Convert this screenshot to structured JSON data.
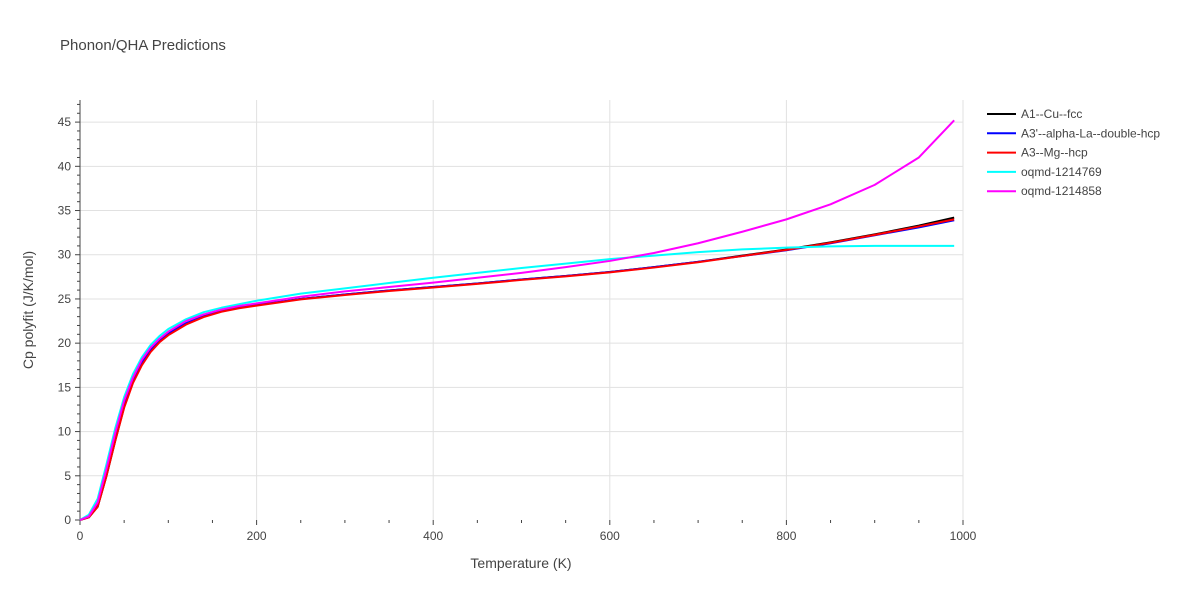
{
  "chart_data": {
    "type": "line",
    "title": "Phonon/QHA Predictions",
    "xlabel": "Temperature (K)",
    "ylabel": "Cp polyfit (J/K/mol)",
    "xlim": [
      0,
      1000
    ],
    "ylim": [
      0,
      47.5
    ],
    "xticks": [
      0,
      200,
      400,
      600,
      800,
      1000
    ],
    "yticks": [
      0,
      5,
      10,
      15,
      20,
      25,
      30,
      35,
      40,
      45
    ],
    "grid": true,
    "legend_position": "top-right",
    "x": [
      0,
      10,
      20,
      30,
      40,
      50,
      60,
      70,
      80,
      90,
      100,
      120,
      140,
      160,
      180,
      200,
      250,
      300,
      350,
      400,
      450,
      500,
      550,
      600,
      650,
      700,
      750,
      800,
      850,
      900,
      950,
      990
    ],
    "series": [
      {
        "name": "A1--Cu--fcc",
        "color": "#000000",
        "values": [
          0,
          0.3,
          1.5,
          5.0,
          9.0,
          12.8,
          15.6,
          17.6,
          19.1,
          20.2,
          21.0,
          22.2,
          23.0,
          23.6,
          24.0,
          24.3,
          25.0,
          25.5,
          25.95,
          26.35,
          26.75,
          27.2,
          27.6,
          28.05,
          28.6,
          29.2,
          29.9,
          30.6,
          31.4,
          32.3,
          33.3,
          34.2
        ]
      },
      {
        "name": "A3'--alpha-La--double-hcp",
        "color": "#0000ff",
        "values": [
          0,
          0.4,
          1.8,
          5.4,
          9.4,
          13.1,
          15.8,
          17.8,
          19.2,
          20.3,
          21.1,
          22.25,
          23.05,
          23.6,
          24.0,
          24.3,
          25.0,
          25.5,
          25.95,
          26.35,
          26.75,
          27.2,
          27.6,
          28.05,
          28.6,
          29.2,
          29.85,
          30.5,
          31.3,
          32.2,
          33.1,
          33.9
        ]
      },
      {
        "name": "A3--Mg--hcp",
        "color": "#ff0000",
        "values": [
          0,
          0.3,
          1.5,
          5.0,
          9.0,
          12.7,
          15.5,
          17.5,
          19.0,
          20.1,
          20.9,
          22.1,
          22.95,
          23.55,
          23.95,
          24.25,
          24.95,
          25.45,
          25.9,
          26.3,
          26.7,
          27.15,
          27.55,
          28.0,
          28.55,
          29.15,
          29.85,
          30.55,
          31.35,
          32.25,
          33.2,
          34.0
        ]
      },
      {
        "name": "oqmd-1214769",
        "color": "#00ffff",
        "values": [
          0,
          0.6,
          2.4,
          6.3,
          10.4,
          13.9,
          16.5,
          18.4,
          19.8,
          20.8,
          21.6,
          22.7,
          23.5,
          24.0,
          24.4,
          24.8,
          25.6,
          26.2,
          26.8,
          27.4,
          27.95,
          28.5,
          29.0,
          29.5,
          29.9,
          30.3,
          30.6,
          30.8,
          30.95,
          31.0,
          31.0,
          31.0
        ]
      },
      {
        "name": "oqmd-1214858",
        "color": "#ff00ff",
        "values": [
          0,
          0.4,
          2.0,
          5.8,
          9.9,
          13.5,
          16.1,
          18.1,
          19.5,
          20.5,
          21.3,
          22.5,
          23.25,
          23.8,
          24.2,
          24.5,
          25.25,
          25.85,
          26.35,
          26.85,
          27.4,
          27.95,
          28.6,
          29.3,
          30.2,
          31.3,
          32.6,
          34.0,
          35.7,
          37.9,
          41.0,
          45.2
        ]
      }
    ]
  }
}
